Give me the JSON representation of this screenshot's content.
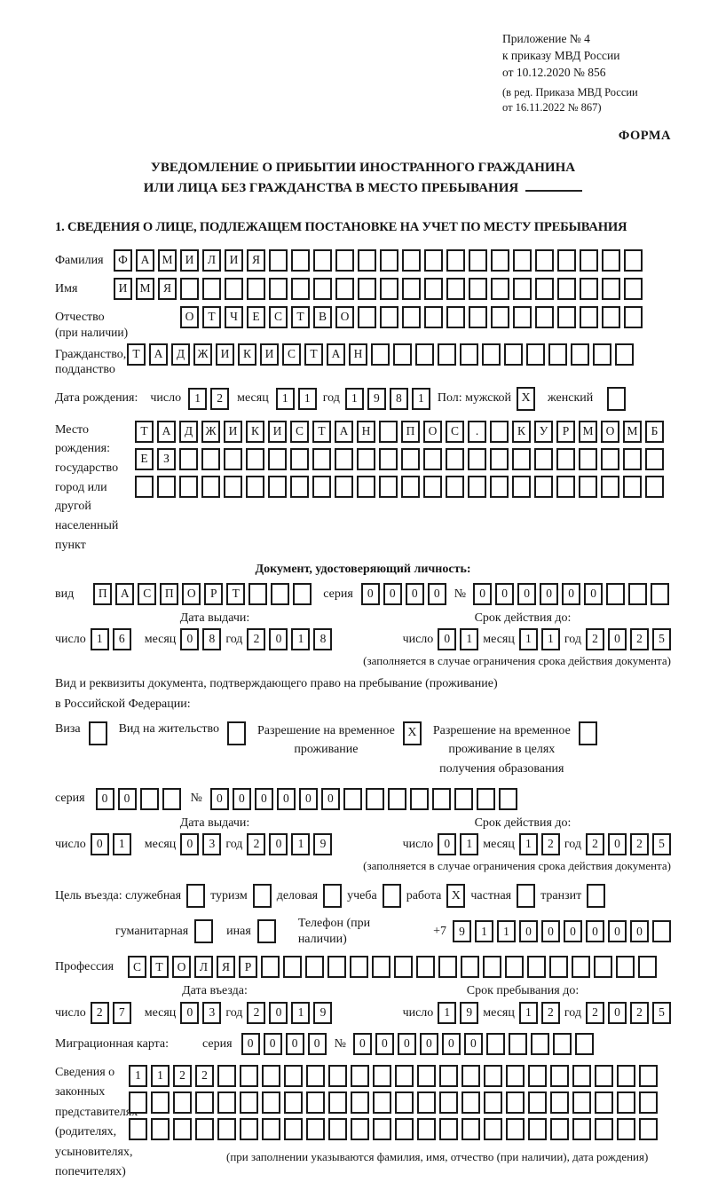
{
  "date_labels": {
    "day": "число",
    "month": "месяц",
    "year": "год"
  },
  "header": {
    "ref_lines": [
      "Приложение № 4",
      "к приказу МВД России",
      "от 10.12.2020 № 856"
    ],
    "amendment_lines": [
      "(в ред. Приказа МВД России",
      "от 16.11.2022 № 867)"
    ],
    "forma": "ФОРМА"
  },
  "title": {
    "line1": "УВЕДОМЛЕНИЕ О ПРИБЫТИИ ИНОСТРАННОГО ГРАЖДАНИНА",
    "line2": "ИЛИ ЛИЦА БЕЗ ГРАЖДАНСТВА В МЕСТО ПРЕБЫВАНИЯ"
  },
  "section1_heading": "1. СВЕДЕНИЯ О ЛИЦЕ, ПОДЛЕЖАЩЕМ ПОСТАНОВКЕ НА УЧЕТ ПО МЕСТУ ПРЕБЫВАНИЯ",
  "person": {
    "surname": {
      "label": "Фамилия",
      "row": {
        "chars": "ФАМИЛИЯ",
        "count": 24
      }
    },
    "name": {
      "label": "Имя",
      "row": {
        "chars": "ИМЯ",
        "count": 24
      }
    },
    "patronymic": {
      "label1": "Отчество",
      "label2": "(при наличии)",
      "row": {
        "chars": "ОТЧЕСТВО",
        "count": 21
      }
    },
    "citizenship": {
      "label1": "Гражданство,",
      "label2": "подданство",
      "row": {
        "chars": "ТАДЖИКИСТАН",
        "count": 23
      }
    },
    "birth": {
      "label": "Дата рождения:",
      "day": {
        "chars": "12",
        "count": 2
      },
      "month": {
        "chars": "11",
        "count": 2
      },
      "year": {
        "chars": "1981",
        "count": 4
      },
      "sex_male_label": "Пол: мужской",
      "sex_female_label": "женский",
      "male_check": "X",
      "female_check": ""
    },
    "birthplace": {
      "label_lines": [
        "Место рождения:",
        "государство",
        "город или другой",
        "населенный пункт"
      ],
      "rows": [
        {
          "chars": "ТАДЖИКИСТАН ПОС. КУРМОМБ",
          "count": 24
        },
        {
          "chars": "ЕЗ",
          "count": 24
        },
        {
          "chars": "",
          "count": 24
        }
      ]
    }
  },
  "identity_doc": {
    "heading": "Документ, удостоверяющий личность:",
    "kind_label": "вид",
    "kind": {
      "chars": "ПАСПОРТ",
      "count": 10
    },
    "series_label": "серия",
    "series": {
      "chars": "0000",
      "count": 4
    },
    "number_label": "№",
    "number": {
      "chars": "000000",
      "count": 9
    },
    "issue_label": "Дата выдачи:",
    "valid_label": "Срок действия до:",
    "issue": {
      "day": {
        "chars": "16",
        "count": 2
      },
      "month": {
        "chars": "08",
        "count": 2
      },
      "year": {
        "chars": "2018",
        "count": 4
      }
    },
    "valid": {
      "day": {
        "chars": "01",
        "count": 2
      },
      "month": {
        "chars": "11",
        "count": 2
      },
      "year": {
        "chars": "2025",
        "count": 4
      }
    },
    "note": "(заполняется в случае ограничения срока действия документа)"
  },
  "residence_doc": {
    "heading1": "Вид и реквизиты документа, подтверждающего право на пребывание (проживание)",
    "heading2": "в Российской Федерации:",
    "options": [
      {
        "label": "Виза",
        "check": ""
      },
      {
        "label": "Вид на жительство",
        "check": ""
      },
      {
        "line1": "Разрешение на временное",
        "line2": "проживание",
        "check": "X"
      },
      {
        "line1": "Разрешение на временное",
        "line2": "проживание в целях",
        "line3": "получения образования",
        "check": ""
      }
    ],
    "series_label": "серия",
    "series": {
      "chars": "00",
      "count": 4
    },
    "number_label": "№",
    "number": {
      "chars": "000000",
      "count": 14
    },
    "issue_label": "Дата выдачи:",
    "valid_label": "Срок действия до:",
    "issue": {
      "day": {
        "chars": "01",
        "count": 2
      },
      "month": {
        "chars": "03",
        "count": 2
      },
      "year": {
        "chars": "2019",
        "count": 4
      }
    },
    "valid": {
      "day": {
        "chars": "01",
        "count": 2
      },
      "month": {
        "chars": "12",
        "count": 2
      },
      "year": {
        "chars": "2025",
        "count": 4
      }
    },
    "note": "(заполняется в случае ограничения срока действия документа)"
  },
  "visit": {
    "purpose_label": "Цель въезда: служебная",
    "options_line1": [
      {
        "label": "туризм",
        "check": ""
      },
      {
        "label": "деловая",
        "check": ""
      },
      {
        "label": "учеба",
        "check": ""
      },
      {
        "label": "работа",
        "check": "X"
      },
      {
        "label": "частная",
        "check": ""
      },
      {
        "label": "транзит",
        "check": ""
      }
    ],
    "business_check": "",
    "options_line2": [
      {
        "label": "гуманитарная",
        "check": ""
      },
      {
        "label": "иная",
        "check": ""
      }
    ],
    "phone_label": "Телефон (при наличии)",
    "phone_prefix": "+7",
    "phone": {
      "chars": "911000000",
      "count": 10
    },
    "profession_label": "Профессия",
    "profession": {
      "chars": "СТОЛЯР",
      "count": 24
    },
    "entry_label": "Дата въезда:",
    "stay_label": "Срок пребывания до:",
    "entry": {
      "day": {
        "chars": "27",
        "count": 2
      },
      "month": {
        "chars": "03",
        "count": 2
      },
      "year": {
        "chars": "2019",
        "count": 4
      }
    },
    "stay": {
      "day": {
        "chars": "19",
        "count": 2
      },
      "month": {
        "chars": "12",
        "count": 2
      },
      "year": {
        "chars": "2025",
        "count": 4
      }
    }
  },
  "migration_card": {
    "label": "Миграционная карта:",
    "series_label": "серия",
    "series": {
      "chars": "0000",
      "count": 4
    },
    "number_label": "№",
    "number": {
      "chars": "000000",
      "count": 11
    }
  },
  "representatives": {
    "label_lines": [
      "Сведения о",
      "законных",
      "представителях",
      "(родителях,",
      "усыновителях,",
      "попечителях)"
    ],
    "rows": [
      {
        "chars": "1122",
        "count": 24
      },
      {
        "chars": "",
        "count": 24
      },
      {
        "chars": "",
        "count": 24
      }
    ],
    "note": "(при заполнении указываются фамилия, имя, отчество (при наличии), дата рождения)"
  }
}
